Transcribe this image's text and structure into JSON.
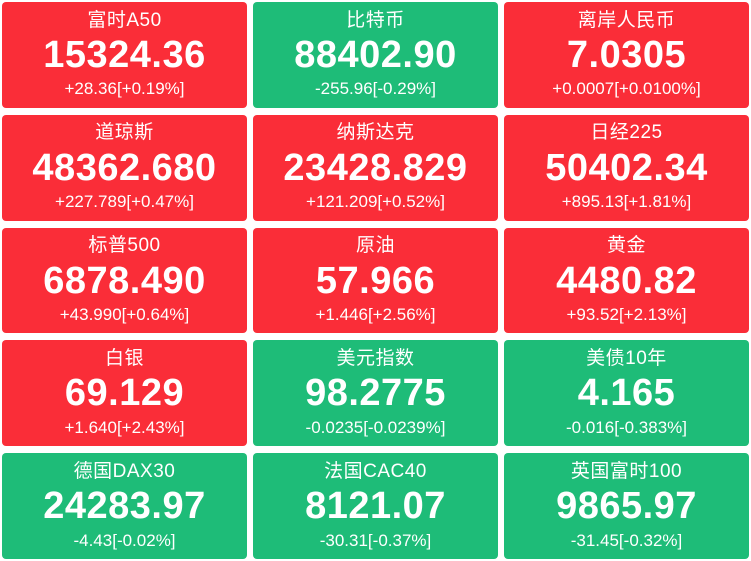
{
  "page": {
    "background": "#ffffff"
  },
  "colors": {
    "up": "#fa2d38",
    "down": "#1ebc78",
    "text": "#ffffff"
  },
  "tiles": [
    {
      "name": "富时A50",
      "value": "15324.36",
      "change": "+28.36[+0.19%]",
      "direction": "up"
    },
    {
      "name": "比特币",
      "value": "88402.90",
      "change": "-255.96[-0.29%]",
      "direction": "down"
    },
    {
      "name": "离岸人民币",
      "value": "7.0305",
      "change": "+0.0007[+0.0100%]",
      "direction": "up"
    },
    {
      "name": "道琼斯",
      "value": "48362.680",
      "change": "+227.789[+0.47%]",
      "direction": "up"
    },
    {
      "name": "纳斯达克",
      "value": "23428.829",
      "change": "+121.209[+0.52%]",
      "direction": "up"
    },
    {
      "name": "日经225",
      "value": "50402.34",
      "change": "+895.13[+1.81%]",
      "direction": "up"
    },
    {
      "name": "标普500",
      "value": "6878.490",
      "change": "+43.990[+0.64%]",
      "direction": "up"
    },
    {
      "name": "原油",
      "value": "57.966",
      "change": "+1.446[+2.56%]",
      "direction": "up"
    },
    {
      "name": "黄金",
      "value": "4480.82",
      "change": "+93.52[+2.13%]",
      "direction": "up"
    },
    {
      "name": "白银",
      "value": "69.129",
      "change": "+1.640[+2.43%]",
      "direction": "up"
    },
    {
      "name": "美元指数",
      "value": "98.2775",
      "change": "-0.0235[-0.0239%]",
      "direction": "down"
    },
    {
      "name": "美债10年",
      "value": "4.165",
      "change": "-0.016[-0.383%]",
      "direction": "down"
    },
    {
      "name": "德国DAX30",
      "value": "24283.97",
      "change": "-4.43[-0.02%]",
      "direction": "down"
    },
    {
      "name": "法国CAC40",
      "value": "8121.07",
      "change": "-30.31[-0.37%]",
      "direction": "down"
    },
    {
      "name": "英国富时100",
      "value": "9865.97",
      "change": "-31.45[-0.32%]",
      "direction": "down"
    }
  ]
}
